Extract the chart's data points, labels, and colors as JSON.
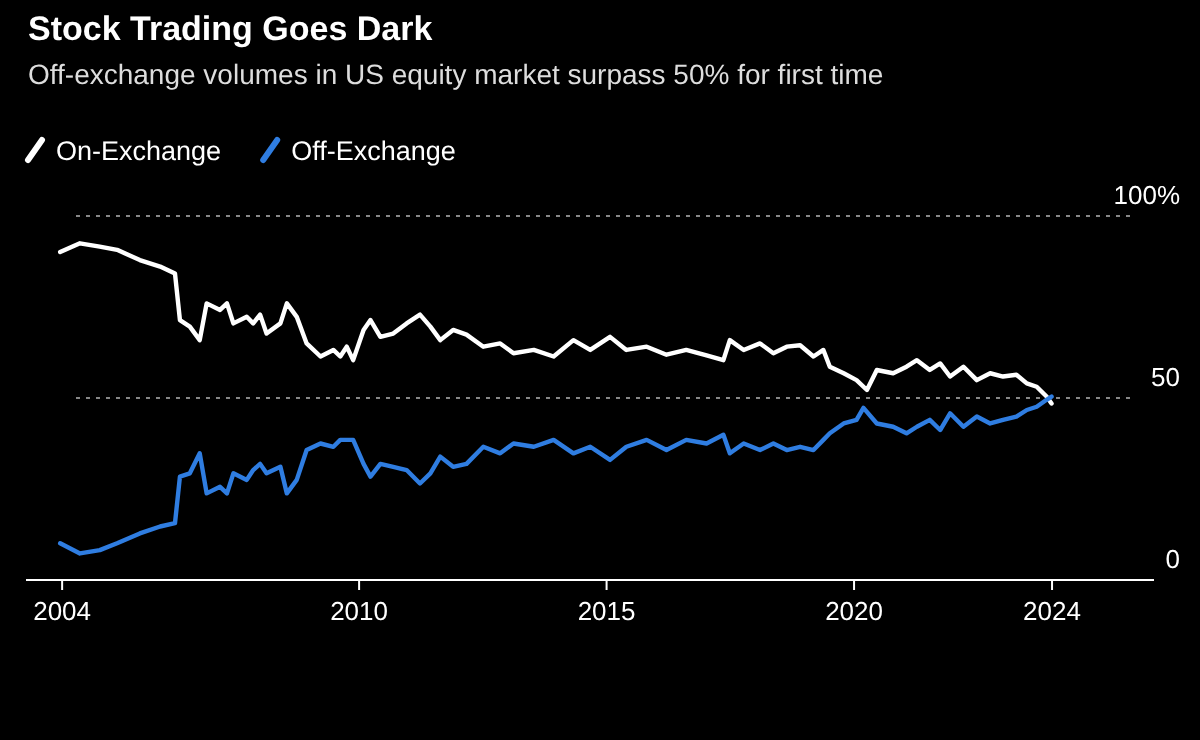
{
  "chart_data": {
    "type": "line",
    "title": "Stock Trading Goes Dark",
    "subtitle": "Off-exchange volumes in US equity market surpass 50% for first time",
    "xlim": [
      2003.27,
      2026.06
    ],
    "xticks": [
      2004,
      2010,
      2015,
      2020,
      2024
    ],
    "ylim": [
      0,
      100
    ],
    "yticks": [
      0,
      50,
      {
        "value": 100,
        "label": "100%"
      }
    ],
    "grid": "y",
    "legend": "top left",
    "line_style": "solid",
    "marker": "none",
    "series": [
      {
        "name": "On-Exchange",
        "color": "#ffffff",
        "x": [
          2003.96,
          2004.36,
          2004.76,
          2005.11,
          2005.57,
          2005.98,
          2006.28,
          2006.38,
          2006.58,
          2006.78,
          2006.92,
          2007.19,
          2007.33,
          2007.46,
          2007.73,
          2007.86,
          2008.0,
          2008.13,
          2008.41,
          2008.54,
          2008.74,
          2008.94,
          2009.22,
          2009.48,
          2009.62,
          2009.75,
          2009.88,
          2010.09,
          2010.23,
          2010.43,
          2010.69,
          2010.96,
          2011.23,
          2011.44,
          2011.64,
          2011.9,
          2012.17,
          2012.51,
          2012.85,
          2013.12,
          2013.53,
          2013.93,
          2014.33,
          2014.67,
          2015.07,
          2015.4,
          2015.81,
          2016.21,
          2016.61,
          2017.02,
          2017.36,
          2017.49,
          2017.77,
          2018.1,
          2018.37,
          2018.64,
          2018.91,
          2019.18,
          2019.38,
          2019.51,
          2019.79,
          2020.05,
          2020.26,
          2020.46,
          2020.79,
          2021.06,
          2021.27,
          2021.53,
          2021.74,
          2021.94,
          2022.21,
          2022.48,
          2022.75,
          2023.01,
          2023.28,
          2023.49,
          2023.69,
          2023.89,
          2023.99
        ],
        "values": [
          90.1,
          92.5,
          91.6,
          90.7,
          87.9,
          86.1,
          84.2,
          71.4,
          69.6,
          65.9,
          76.0,
          74.2,
          76.0,
          70.5,
          72.3,
          70.5,
          72.9,
          67.7,
          70.5,
          76.0,
          72.3,
          65.0,
          61.4,
          63.2,
          61.4,
          64.1,
          60.4,
          68.7,
          71.4,
          66.8,
          67.7,
          70.5,
          72.9,
          69.6,
          65.9,
          68.7,
          67.4,
          64.1,
          65.0,
          62.3,
          63.2,
          61.4,
          65.9,
          63.2,
          66.8,
          63.2,
          64.1,
          61.9,
          63.2,
          61.7,
          60.4,
          65.9,
          63.2,
          65.0,
          62.3,
          64.1,
          64.5,
          61.4,
          63.2,
          58.6,
          56.8,
          54.9,
          52.2,
          57.7,
          56.8,
          58.6,
          60.4,
          57.7,
          59.5,
          55.9,
          58.6,
          54.9,
          56.8,
          55.9,
          56.4,
          54.0,
          53.1,
          50.4,
          48.5
        ]
      },
      {
        "name": "Off-Exchange",
        "color": "#2f7de1",
        "x": [
          2003.96,
          2004.36,
          2004.76,
          2005.11,
          2005.57,
          2005.98,
          2006.28,
          2006.38,
          2006.58,
          2006.78,
          2006.92,
          2007.19,
          2007.33,
          2007.46,
          2007.73,
          2007.86,
          2008.0,
          2008.13,
          2008.41,
          2008.54,
          2008.74,
          2008.94,
          2009.22,
          2009.48,
          2009.62,
          2009.75,
          2009.88,
          2010.09,
          2010.23,
          2010.43,
          2010.69,
          2010.96,
          2011.23,
          2011.44,
          2011.64,
          2011.9,
          2012.17,
          2012.51,
          2012.85,
          2013.12,
          2013.53,
          2013.93,
          2014.33,
          2014.67,
          2015.07,
          2015.4,
          2015.81,
          2016.21,
          2016.61,
          2017.02,
          2017.36,
          2017.49,
          2017.77,
          2018.1,
          2018.37,
          2018.64,
          2018.91,
          2019.18,
          2019.38,
          2019.51,
          2019.79,
          2020.05,
          2020.19,
          2020.46,
          2020.79,
          2021.06,
          2021.27,
          2021.53,
          2021.74,
          2021.94,
          2022.21,
          2022.48,
          2022.75,
          2023.01,
          2023.28,
          2023.49,
          2023.69,
          2023.89,
          2023.99
        ],
        "values": [
          10.1,
          7.3,
          8.2,
          10.1,
          12.8,
          14.7,
          15.6,
          28.4,
          29.3,
          34.8,
          23.8,
          25.6,
          23.8,
          29.3,
          27.5,
          30.2,
          31.9,
          29.3,
          31.1,
          23.8,
          27.5,
          35.7,
          37.5,
          36.6,
          38.5,
          38.5,
          38.5,
          31.9,
          28.4,
          31.9,
          31.1,
          30.2,
          26.5,
          29.3,
          33.9,
          31.1,
          31.9,
          36.6,
          34.8,
          37.5,
          36.6,
          38.5,
          34.8,
          36.6,
          33.0,
          36.6,
          38.5,
          35.7,
          38.5,
          37.5,
          39.9,
          34.8,
          37.5,
          35.7,
          37.5,
          35.7,
          36.6,
          35.7,
          38.5,
          40.3,
          43.0,
          44.0,
          47.3,
          43.0,
          42.1,
          40.3,
          42.1,
          44.0,
          41.2,
          45.8,
          42.1,
          44.9,
          43.0,
          44.0,
          44.9,
          46.7,
          47.6,
          49.5,
          50.4
        ]
      }
    ]
  }
}
